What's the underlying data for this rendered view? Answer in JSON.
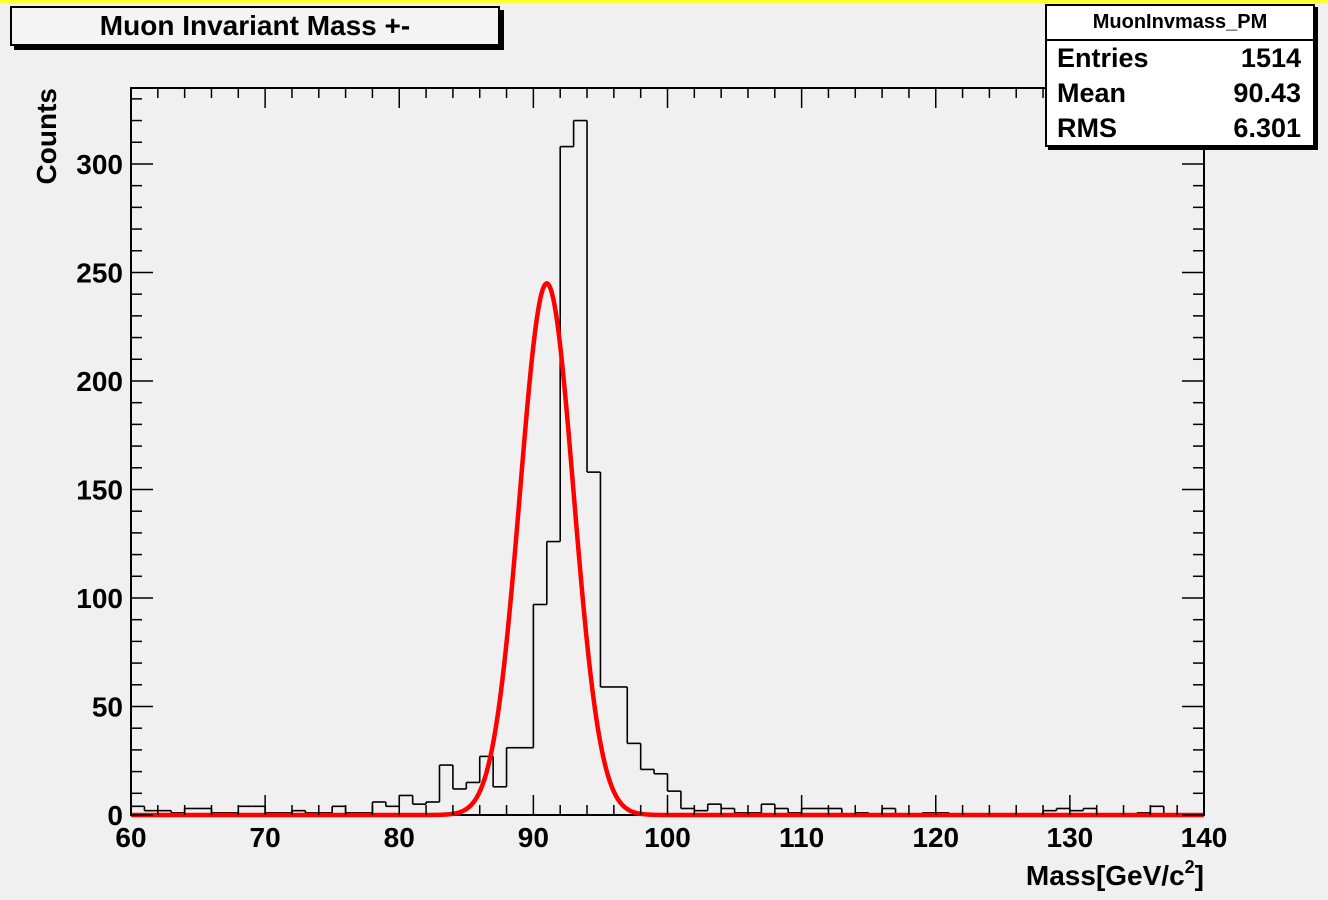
{
  "chart_data": {
    "type": "histogram",
    "title": "Muon Invariant Mass +-",
    "xlabel": "Mass[GeV/c",
    "xlabel_sup": "2",
    "xlabel_close": "]",
    "ylabel": "Counts",
    "xlim": [
      60,
      140
    ],
    "ylim": [
      0,
      335
    ],
    "x_ticks": [
      60,
      70,
      80,
      90,
      100,
      110,
      120,
      130,
      140
    ],
    "y_ticks": [
      0,
      50,
      100,
      150,
      200,
      250,
      300
    ],
    "bin_width": 1,
    "bin_start": 60,
    "values": [
      4,
      2,
      2,
      1,
      3,
      3,
      1,
      1,
      4,
      4,
      1,
      1,
      2,
      1,
      1,
      4,
      1,
      1,
      6,
      4,
      9,
      5,
      6,
      23,
      12,
      15,
      27,
      13,
      31,
      31,
      97,
      126,
      308,
      320,
      158,
      59,
      59,
      33,
      21,
      19,
      11,
      3,
      2,
      5,
      3,
      1,
      1,
      5,
      3,
      1,
      3,
      3,
      3,
      0,
      1,
      0,
      3,
      0,
      0,
      1,
      1,
      0,
      0,
      0,
      0,
      0,
      0,
      0,
      2,
      3,
      2,
      3,
      0,
      0,
      0,
      1,
      4,
      0,
      0,
      0
    ],
    "fit": {
      "type": "gaussian",
      "color": "#ff0000",
      "amplitude": 245,
      "mean": 91.0,
      "sigma": 2.0
    },
    "stats": {
      "name": "MuonInvmass_PM",
      "rows": [
        {
          "label": "Entries",
          "value": "1514"
        },
        {
          "label": "Mean",
          "value": "90.43"
        },
        {
          "label": "RMS",
          "value": "6.301"
        }
      ]
    }
  }
}
